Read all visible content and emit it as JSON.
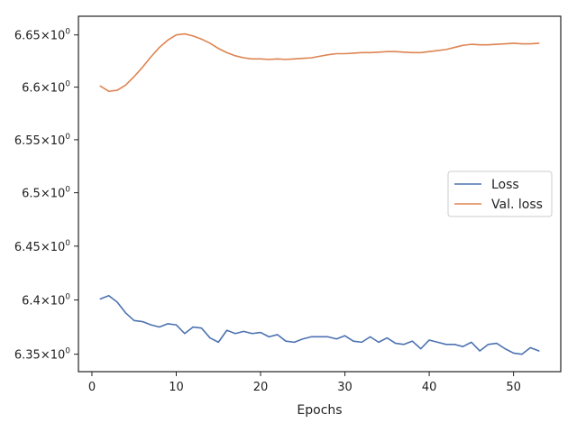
{
  "chart_data": {
    "type": "line",
    "title": "",
    "xlabel": "Epochs",
    "ylabel": "",
    "yscale": "log",
    "xlim": [
      -1.6,
      55.6
    ],
    "ylim": [
      6.334,
      6.668
    ],
    "grid": false,
    "legend_position": "center-right",
    "x_ticks": [
      {
        "value": 0,
        "label": "0"
      },
      {
        "value": 10,
        "label": "10"
      },
      {
        "value": 20,
        "label": "20"
      },
      {
        "value": 30,
        "label": "30"
      },
      {
        "value": 40,
        "label": "40"
      },
      {
        "value": 50,
        "label": "50"
      }
    ],
    "y_ticks": [
      {
        "value": 6.35,
        "label": "6.35",
        "exp": "0"
      },
      {
        "value": 6.4,
        "label": "6.4",
        "exp": "0"
      },
      {
        "value": 6.45,
        "label": "6.45",
        "exp": "0"
      },
      {
        "value": 6.5,
        "label": "6.5",
        "exp": "0"
      },
      {
        "value": 6.55,
        "label": "6.55",
        "exp": "0"
      },
      {
        "value": 6.6,
        "label": "6.6",
        "exp": "0"
      },
      {
        "value": 6.65,
        "label": "6.65",
        "exp": "0"
      }
    ],
    "tick_multiplier": "×10",
    "x": [
      1,
      2,
      3,
      4,
      5,
      6,
      7,
      8,
      9,
      10,
      11,
      12,
      13,
      14,
      15,
      16,
      17,
      18,
      19,
      20,
      21,
      22,
      23,
      24,
      25,
      26,
      27,
      28,
      29,
      30,
      31,
      32,
      33,
      34,
      35,
      36,
      37,
      38,
      39,
      40,
      41,
      42,
      43,
      44,
      45,
      46,
      47,
      48,
      49,
      50,
      51,
      52,
      53
    ],
    "series": [
      {
        "name": "Loss",
        "color": "#4c72b0",
        "values": [
          6.401,
          6.404,
          6.398,
          6.388,
          6.381,
          6.38,
          6.377,
          6.375,
          6.378,
          6.377,
          6.369,
          6.375,
          6.374,
          6.365,
          6.361,
          6.372,
          6.369,
          6.371,
          6.369,
          6.37,
          6.366,
          6.368,
          6.362,
          6.361,
          6.364,
          6.366,
          6.366,
          6.366,
          6.364,
          6.367,
          6.362,
          6.361,
          6.366,
          6.361,
          6.365,
          6.36,
          6.359,
          6.362,
          6.355,
          6.363,
          6.361,
          6.359,
          6.359,
          6.357,
          6.361,
          6.353,
          6.359,
          6.36,
          6.355,
          6.351,
          6.35,
          6.356,
          6.353
        ]
      },
      {
        "name": "Val. loss",
        "color": "#dd8452",
        "values": [
          6.601,
          6.596,
          6.597,
          6.602,
          6.61,
          6.619,
          6.629,
          6.638,
          6.645,
          6.65,
          6.651,
          6.649,
          6.646,
          6.642,
          6.637,
          6.633,
          6.63,
          6.628,
          6.627,
          6.627,
          6.6265,
          6.627,
          6.6265,
          6.627,
          6.6275,
          6.628,
          6.6295,
          6.631,
          6.632,
          6.632,
          6.6325,
          6.633,
          6.633,
          6.6335,
          6.634,
          6.634,
          6.6335,
          6.633,
          6.633,
          6.634,
          6.635,
          6.636,
          6.638,
          6.64,
          6.641,
          6.6405,
          6.6405,
          6.641,
          6.6415,
          6.642,
          6.6415,
          6.6415,
          6.642
        ]
      }
    ]
  }
}
